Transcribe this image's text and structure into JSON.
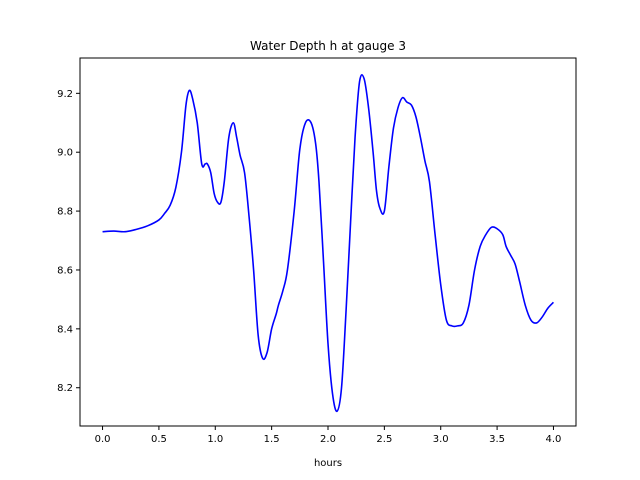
{
  "chart_data": {
    "type": "line",
    "title": "Water Depth h at gauge 3",
    "xlabel": "hours",
    "ylabel": "",
    "xlim": [
      -0.2,
      4.2
    ],
    "ylim": [
      8.07,
      9.32
    ],
    "xticks": [
      0.0,
      0.5,
      1.0,
      1.5,
      2.0,
      2.5,
      3.0,
      3.5,
      4.0
    ],
    "xtick_labels": [
      "0.0",
      "0.5",
      "1.0",
      "1.5",
      "2.0",
      "2.5",
      "3.0",
      "3.5",
      "4.0"
    ],
    "yticks": [
      8.2,
      8.4,
      8.6,
      8.8,
      9.0,
      9.2
    ],
    "ytick_labels": [
      "8.2",
      "8.4",
      "8.6",
      "8.8",
      "9.0",
      "9.2"
    ],
    "grid": false,
    "series": [
      {
        "color": "#0000ff",
        "x": [
          0.0,
          0.1,
          0.2,
          0.3,
          0.4,
          0.5,
          0.55,
          0.6,
          0.65,
          0.7,
          0.74,
          0.77,
          0.8,
          0.84,
          0.88,
          0.91,
          0.93,
          0.96,
          0.99,
          1.02,
          1.05,
          1.08,
          1.12,
          1.16,
          1.19,
          1.22,
          1.26,
          1.3,
          1.34,
          1.38,
          1.42,
          1.46,
          1.5,
          1.54,
          1.56,
          1.6,
          1.64,
          1.7,
          1.75,
          1.8,
          1.85,
          1.89,
          1.92,
          1.96,
          2.0,
          2.04,
          2.08,
          2.12,
          2.16,
          2.2,
          2.24,
          2.28,
          2.32,
          2.36,
          2.4,
          2.43,
          2.46,
          2.5,
          2.54,
          2.58,
          2.62,
          2.66,
          2.7,
          2.74,
          2.78,
          2.82,
          2.86,
          2.9,
          2.95,
          3.0,
          3.05,
          3.1,
          3.15,
          3.2,
          3.25,
          3.3,
          3.35,
          3.4,
          3.45,
          3.5,
          3.55,
          3.58,
          3.62,
          3.66,
          3.7,
          3.75,
          3.8,
          3.85,
          3.9,
          3.95,
          4.0
        ],
        "y": [
          8.73,
          8.732,
          8.73,
          8.738,
          8.75,
          8.77,
          8.792,
          8.82,
          8.88,
          9.0,
          9.16,
          9.21,
          9.18,
          9.1,
          8.96,
          8.96,
          8.96,
          8.93,
          8.86,
          8.83,
          8.83,
          8.9,
          9.05,
          9.1,
          9.05,
          8.99,
          8.93,
          8.78,
          8.6,
          8.38,
          8.3,
          8.32,
          8.4,
          8.45,
          8.48,
          8.53,
          8.6,
          8.8,
          9.01,
          9.1,
          9.1,
          9.03,
          8.9,
          8.63,
          8.35,
          8.18,
          8.12,
          8.2,
          8.46,
          8.76,
          9.05,
          9.24,
          9.25,
          9.15,
          9.0,
          8.87,
          8.81,
          8.8,
          8.95,
          9.08,
          9.15,
          9.185,
          9.17,
          9.16,
          9.12,
          9.05,
          8.97,
          8.9,
          8.72,
          8.55,
          8.43,
          8.41,
          8.41,
          8.42,
          8.48,
          8.6,
          8.68,
          8.72,
          8.745,
          8.74,
          8.72,
          8.68,
          8.65,
          8.62,
          8.56,
          8.48,
          8.43,
          8.42,
          8.44,
          8.47,
          8.49
        ]
      }
    ]
  }
}
